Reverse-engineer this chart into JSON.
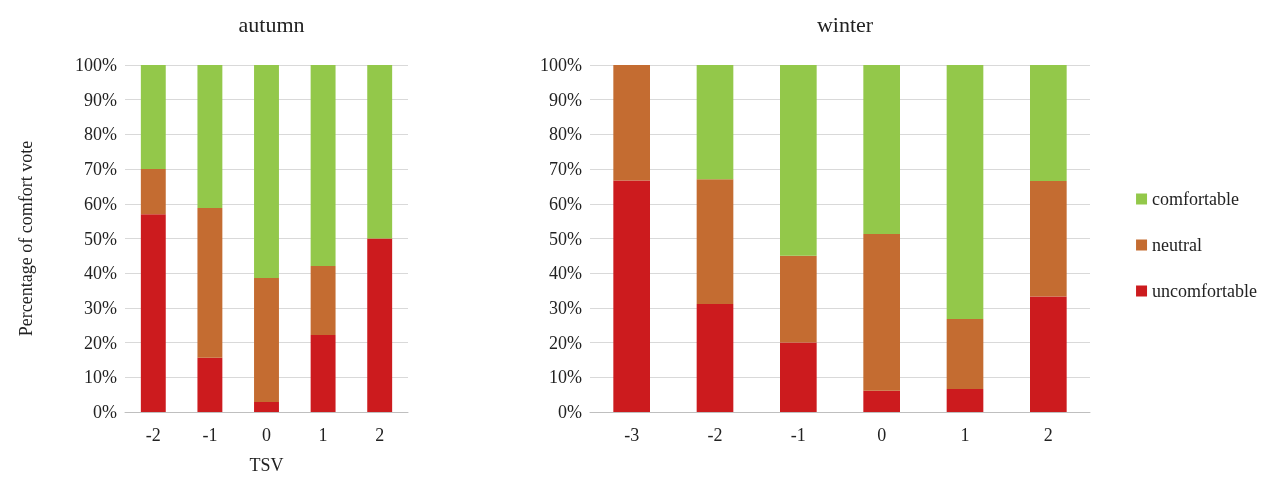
{
  "chart_data": [
    {
      "type": "bar",
      "title": "autumn",
      "xlabel": "TSV",
      "ylabel": "Percentage of comfort vote",
      "stacked": true,
      "categories": [
        "-2",
        "-1",
        "0",
        "1",
        "2"
      ],
      "series": [
        {
          "color": "#cc1b1e",
          "values": [
            57,
            15.6,
            2.9,
            22.2,
            50
          ]
        },
        {
          "color": "#c46c31",
          "values": [
            13,
            43.2,
            35.7,
            19.9,
            0
          ]
        },
        {
          "color": "#93c84a",
          "values": [
            30,
            41.2,
            61.4,
            57.9,
            50
          ]
        }
      ],
      "ylim": [
        0,
        100
      ],
      "yticks": [
        {
          "value": 0,
          "label": "0%"
        },
        {
          "value": 10,
          "label": "10%"
        },
        {
          "value": 20,
          "label": "20%"
        },
        {
          "value": 30,
          "label": "30%"
        },
        {
          "value": 40,
          "label": "40%"
        },
        {
          "value": 50,
          "label": "50%"
        },
        {
          "value": 60,
          "label": "60%"
        },
        {
          "value": 70,
          "label": "70%"
        },
        {
          "value": 80,
          "label": "80%"
        },
        {
          "value": 90,
          "label": "90%"
        },
        {
          "value": 100,
          "label": "100%"
        }
      ],
      "grid": "y"
    },
    {
      "type": "bar",
      "title": "winter",
      "stacked": true,
      "categories": [
        "-3",
        "-2",
        "-1",
        "0",
        "1",
        "2"
      ],
      "series": [
        {
          "name": "uncomfortable",
          "color": "#cc1b1e",
          "values": [
            66.7,
            31.1,
            20,
            6.1,
            6.6,
            33.3
          ]
        },
        {
          "name": "neutral",
          "color": "#c46c31",
          "values": [
            33.3,
            36,
            25,
            45.2,
            20.2,
            33.3
          ]
        },
        {
          "name": "comfortable",
          "color": "#93c84a",
          "values": [
            0,
            32.9,
            55,
            48.7,
            73.2,
            33.4
          ]
        }
      ],
      "ylim": [
        0,
        100
      ],
      "yticks": [
        {
          "value": 0,
          "label": "0%"
        },
        {
          "value": 10,
          "label": "10%"
        },
        {
          "value": 20,
          "label": "20%"
        },
        {
          "value": 30,
          "label": "30%"
        },
        {
          "value": 40,
          "label": "40%"
        },
        {
          "value": 50,
          "label": "50%"
        },
        {
          "value": 60,
          "label": "60%"
        },
        {
          "value": 70,
          "label": "70%"
        },
        {
          "value": 80,
          "label": "80%"
        },
        {
          "value": 90,
          "label": "90%"
        },
        {
          "value": 100,
          "label": "100%"
        }
      ],
      "grid": "y",
      "legend": "right"
    }
  ]
}
